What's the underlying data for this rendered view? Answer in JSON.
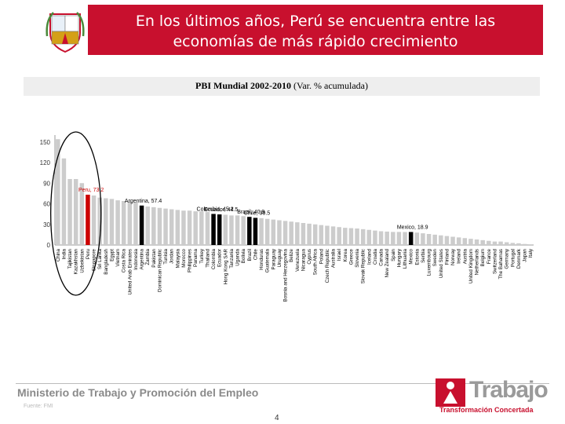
{
  "header": {
    "title_line1": "En los últimos años, Perú se encuentra entre las",
    "title_line2": "economías de más rápido crecimiento",
    "band_color": "#c8102e"
  },
  "subtitle": {
    "bold": "PBI Mundial 2002-2010",
    "normal": " (Var. % acumulada)"
  },
  "footer": {
    "ministry": "Ministerio de Trabajo y Promoción del Empleo",
    "page_number": "4",
    "logo_word": "Trabajo",
    "logo_tagline": "Transformación Concertada",
    "source_note": "Fuente: FMI"
  },
  "chart_data": {
    "type": "bar",
    "title": "PBI Mundial 2002-2010",
    "ylim": [
      0,
      160
    ],
    "yticks": [
      0,
      30,
      60,
      90,
      120,
      150
    ],
    "grid": false,
    "colors": {
      "default": "#cccccc",
      "peru": "#cc0000",
      "highlight": "#000000"
    },
    "categories": [
      "China",
      "India",
      "Tajikistan",
      "Kazakhstan",
      "Uzbekistan",
      "Peru",
      "Singapore",
      "Sri Lanka",
      "Bangladesh",
      "Egypt",
      "Vietnam",
      "Costa Rica",
      "United Arab Emirates",
      "Indonesia",
      "Argentina",
      "Zambia",
      "Pakistan",
      "Dominican Republic",
      "Tunisia",
      "Jordan",
      "Malaysia",
      "Morocco",
      "Philippines",
      "Panama",
      "Turkey",
      "Thailand",
      "Colombia",
      "Ecuador",
      "Hong Kong SAR",
      "Tanzania",
      "Uganda",
      "Bolivia",
      "Brazil",
      "Chile",
      "Honduras",
      "Guatemala",
      "Paraguay",
      "Uruguay",
      "Bosnia and Herzegovina",
      "Belize",
      "Venezuela",
      "Nicaragua",
      "Cyprus",
      "South Africa",
      "Poland",
      "Czech Republic",
      "Australia",
      "Israel",
      "Korea",
      "Greece",
      "Slovenia",
      "Slovak Republic",
      "Iceland",
      "Croatia",
      "Canada",
      "New Zealand",
      "Spain",
      "Hungary",
      "Lithuania",
      "Mexico",
      "Estonia",
      "Serbia",
      "Luxembourg",
      "Sweden",
      "United States",
      "Finland",
      "Norway",
      "Ireland",
      "Austria",
      "United Kingdom",
      "Netherlands",
      "Belgium",
      "France",
      "Switzerland",
      "The Bahamas",
      "Germany",
      "Portugal",
      "Denmark",
      "Japan",
      "Italy"
    ],
    "values": [
      154,
      126,
      96,
      96,
      90,
      73.2,
      72,
      69,
      68,
      67,
      65,
      64,
      63,
      62,
      57.4,
      56,
      55,
      54,
      53,
      52,
      51,
      50,
      50,
      49,
      49,
      48,
      45.2,
      44.5,
      44,
      43,
      43,
      42,
      40.9,
      39.5,
      39,
      38,
      37,
      36,
      35,
      34,
      33,
      32,
      31,
      30,
      29,
      28,
      27,
      26,
      25,
      24.5,
      24,
      23,
      22,
      21,
      20,
      19.5,
      19,
      19,
      18.9,
      18.9,
      18,
      17,
      16,
      15,
      14,
      13,
      12,
      11,
      10,
      9,
      8,
      7,
      6,
      5,
      5,
      4,
      3,
      2.5,
      1.5,
      1
    ],
    "highlight": {
      "Peru": "peru",
      "Argentina": "highlight",
      "Colombia": "highlight",
      "Ecuador": "highlight",
      "Brazil": "highlight",
      "Chile": "highlight",
      "Mexico": "highlight"
    },
    "annotations": [
      {
        "label": "Peru, 73.2",
        "category": "Peru"
      },
      {
        "label": "Argentina, 57.4",
        "category": "Argentina"
      },
      {
        "label": "Colombia, 45.2",
        "category": "Colombia"
      },
      {
        "label": "Ecuador, 44.5",
        "category": "Ecuador"
      },
      {
        "label": "Brazil, 40.9",
        "category": "Brazil"
      },
      {
        "label": "Chile, 39.5",
        "category": "Chile"
      },
      {
        "label": "Mexico, 18.9",
        "category": "Mexico"
      }
    ]
  }
}
